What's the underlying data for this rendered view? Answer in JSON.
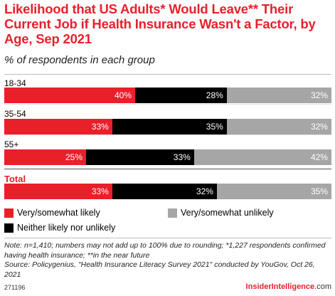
{
  "title": "Likelihood that US Adults* Would Leave** Their Current Job if Health Insurance Wasn't a Factor, by Age, Sep 2021",
  "subtitle": "% of respondents in each group",
  "colors": {
    "very_somewhat_likely": "#e8202a",
    "neither": "#000000",
    "very_somewhat_unlikely": "#a6a6a6",
    "title": "#e8202a"
  },
  "chart_data": {
    "type": "bar",
    "orientation": "horizontal",
    "stacked": true,
    "categories": [
      "18-34",
      "35-54",
      "55+",
      "Total"
    ],
    "series": [
      {
        "name": "Very/somewhat likely",
        "values": [
          40,
          33,
          25,
          33
        ]
      },
      {
        "name": "Neither likely nor unlikely",
        "values": [
          28,
          35,
          33,
          32
        ]
      },
      {
        "name": "Very/somewhat unlikely",
        "values": [
          32,
          32,
          42,
          35
        ]
      }
    ],
    "labels": [
      [
        "40%",
        "28%",
        "32%"
      ],
      [
        "33%",
        "35%",
        "32%"
      ],
      [
        "25%",
        "33%",
        "42%"
      ],
      [
        "33%",
        "32%",
        "35%"
      ]
    ],
    "legend_position": "bottom"
  },
  "legend": {
    "likely": "Very/somewhat likely",
    "unlikely": "Very/somewhat unlikely",
    "neither": "Neither likely nor unlikely"
  },
  "note": "Note: n=1,410; numbers may not add up to 100% due to rounding; *1,227 respondents confirmed having health insurance; **in the near future",
  "source": "Source: Policygenius, \"Health Insurance Literacy Survey 2021\" conducted by YouGov, Oct 26, 2021",
  "chart_id": "271196",
  "brand": {
    "part1": "Insider",
    "part2": "Intelligence",
    "part3": ".com"
  }
}
